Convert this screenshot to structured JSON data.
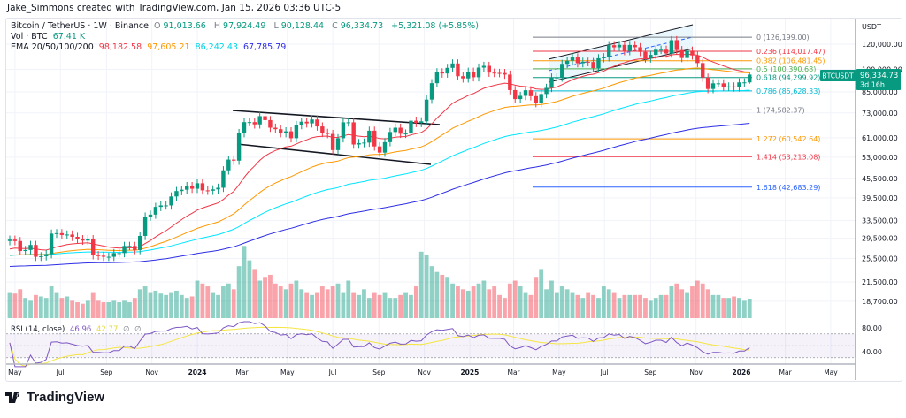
{
  "credit": "Jake_Simmons created with TradingView.com, Jan 15, 2026 03:36 UTC-5",
  "legend": {
    "symbol": "Bitcoin / TetherUS · 1W · Binance",
    "o_label": "O",
    "o": "91,013.66",
    "h_label": "H",
    "h": "97,924.49",
    "l_label": "L",
    "l": "90,128.44",
    "c_label": "C",
    "c": "96,334.73",
    "change": "+5,321.08 (+5.85%)",
    "vol_label": "Vol · BTC",
    "vol": "67.41 K",
    "ema_label": "EMA 20/50/100/200",
    "ema20": "98,182.58",
    "ema50": "97,605.21",
    "ema100": "86,242.43",
    "ema200": "67,785.79",
    "rsi_label": "RSI (14, close)",
    "rsi": "46.96",
    "rsi_ma": "42.77",
    "rsi_extra1": "∅",
    "rsi_extra2": "∅"
  },
  "price_tag": {
    "symbol": "BTCUSDT",
    "price": "96,334.73",
    "countdown": "3d 16h"
  },
  "axis": {
    "currency": "USDT",
    "price_ticks": [
      "120,000.00",
      "100,000.00",
      "85,000.00",
      "73,000.00",
      "61,000.00",
      "53,000.00",
      "45,500.00",
      "39,500.00",
      "33,500.00",
      "29,500.00",
      "25,500.00",
      "21,500.00",
      "18,700.00"
    ],
    "rsi_ticks": [
      "80.00",
      "40.00"
    ],
    "time_ticks": [
      {
        "label": "May",
        "date": "2023-05-01"
      },
      {
        "label": "Jul",
        "date": "2023-07-01"
      },
      {
        "label": "Sep",
        "date": "2023-09-01"
      },
      {
        "label": "Nov",
        "date": "2023-11-01"
      },
      {
        "label": "2024",
        "date": "2024-01-01",
        "bold": true
      },
      {
        "label": "Mar",
        "date": "2024-03-01"
      },
      {
        "label": "May",
        "date": "2024-05-01"
      },
      {
        "label": "Jul",
        "date": "2024-07-01"
      },
      {
        "label": "Sep",
        "date": "2024-09-01"
      },
      {
        "label": "Nov",
        "date": "2024-11-01"
      },
      {
        "label": "2025",
        "date": "2025-01-01",
        "bold": true
      },
      {
        "label": "Mar",
        "date": "2025-03-01"
      },
      {
        "label": "May",
        "date": "2025-05-01"
      },
      {
        "label": "Jul",
        "date": "2025-07-01"
      },
      {
        "label": "Sep",
        "date": "2025-09-01"
      },
      {
        "label": "Nov",
        "date": "2025-11-01"
      },
      {
        "label": "2026",
        "date": "2026-01-01",
        "bold": true
      },
      {
        "label": "Mar",
        "date": "2026-03-01"
      },
      {
        "label": "May",
        "date": "2026-05-01"
      }
    ]
  },
  "fib_levels": [
    {
      "label": "0 (126,199.00)",
      "price": 126199.0,
      "color": "#787b86"
    },
    {
      "label": "0.236 (114,017.47)",
      "price": 114017.47,
      "color": "#f23645"
    },
    {
      "label": "0.382 (106,481.45)",
      "price": 106481.45,
      "color": "#ff9800"
    },
    {
      "label": "0.5 (100,390.68)",
      "price": 100390.68,
      "color": "#4caf50"
    },
    {
      "label": "0.618 (94,299.92)",
      "price": 94299.92,
      "color": "#089981"
    },
    {
      "label": "0.786 (85,628.33)",
      "price": 85628.33,
      "color": "#00bcd4"
    },
    {
      "label": "1 (74,582.37)",
      "price": 74582.37,
      "color": "#787b86"
    },
    {
      "label": "1.272 (60,542.64)",
      "price": 60542.64,
      "color": "#ff9800"
    },
    {
      "label": "1.414 (53,213.08)",
      "price": 53213.08,
      "color": "#f23645"
    },
    {
      "label": "1.618 (42,683.29)",
      "price": 42683.29,
      "color": "#2962ff"
    }
  ],
  "colors": {
    "up": "#089981",
    "down": "#f23645",
    "ema20": "#f23645",
    "ema50": "#ff9800",
    "ema100": "#00e5ff",
    "ema200": "#2e2ee6",
    "rsi": "#7e57c2",
    "rsi_ma": "#f5e642"
  },
  "brand": "TradingView",
  "chart_data": {
    "type": "candlestick",
    "interval": "1W",
    "x_start": "2023-04-24",
    "y_scale": "log",
    "ylim": [
      17500,
      135000
    ],
    "grid": true,
    "closes": [
      29200,
      28900,
      26900,
      27100,
      28100,
      25800,
      25900,
      26300,
      30500,
      30600,
      30200,
      30300,
      29800,
      29300,
      29000,
      29300,
      26100,
      26000,
      25800,
      25800,
      26500,
      26500,
      27900,
      27900,
      27100,
      30000,
      34500,
      35000,
      37000,
      37400,
      37400,
      39900,
      41500,
      41900,
      43000,
      42200,
      43900,
      41700,
      41600,
      42000,
      42500,
      48200,
      52100,
      51700,
      63100,
      68300,
      68300,
      67200,
      71300,
      69300,
      65600,
      64900,
      63100,
      63900,
      60800,
      66900,
      68500,
      67700,
      69600,
      66200,
      63200,
      62700,
      55800,
      60800,
      68200,
      68200,
      58100,
      58700,
      58900,
      64200,
      57300,
      54800,
      59100,
      63600,
      65600,
      62800,
      62900,
      69000,
      67900,
      68700,
      80400,
      90500,
      97900,
      97100,
      101100,
      104400,
      95200,
      93700,
      98300,
      94500,
      101300,
      102600,
      97700,
      97500,
      97400,
      96300,
      86100,
      80700,
      82600,
      86000,
      82400,
      78400,
      83700,
      87500,
      94300,
      94300,
      104100,
      106500,
      109000,
      104600,
      105700,
      105500,
      100900,
      108400,
      109200,
      119100,
      117300,
      119400,
      114200,
      119300,
      117400,
      113500,
      108300,
      111100,
      115300,
      115300,
      112200,
      123500,
      115000,
      108600,
      114500,
      110600,
      104700,
      94200,
      86800,
      90400,
      90400,
      88200,
      88400,
      87800,
      91013.66,
      91013.66,
      96334.73
    ],
    "last_bar": {
      "open": 91013.66,
      "high": 97924.49,
      "low": 90128.44,
      "close": 96334.73
    },
    "volume_k": [
      90,
      85,
      100,
      70,
      60,
      80,
      75,
      70,
      110,
      90,
      70,
      75,
      60,
      55,
      50,
      60,
      90,
      60,
      55,
      55,
      60,
      55,
      60,
      55,
      70,
      100,
      110,
      90,
      95,
      85,
      80,
      90,
      95,
      80,
      70,
      75,
      130,
      120,
      110,
      90,
      80,
      110,
      120,
      100,
      180,
      250,
      200,
      170,
      130,
      140,
      150,
      120,
      110,
      100,
      120,
      130,
      100,
      90,
      80,
      90,
      110,
      100,
      110,
      120,
      90,
      130,
      90,
      80,
      100,
      70,
      90,
      80,
      90,
      70,
      70,
      80,
      90,
      80,
      110,
      230,
      220,
      180,
      160,
      150,
      140,
      120,
      110,
      100,
      95,
      110,
      120,
      130,
      100,
      110,
      80,
      70,
      120,
      130,
      110,
      90,
      80,
      140,
      170,
      100,
      130,
      90,
      110,
      100,
      90,
      80,
      70,
      90,
      80,
      70,
      110,
      100,
      90,
      70,
      80,
      80,
      80,
      80,
      70,
      60,
      70,
      80,
      80,
      110,
      120,
      100,
      90,
      110,
      130,
      120,
      100,
      80,
      80,
      70,
      70,
      75,
      70,
      60,
      67.41
    ],
    "ema_start_values": {
      "ema20": 27100,
      "ema50": 25900,
      "ema100": 26000,
      "ema200": 24000
    },
    "indicators": [
      "EMA 20",
      "EMA 50",
      "EMA 100",
      "EMA 200",
      "RSI 14"
    ]
  }
}
